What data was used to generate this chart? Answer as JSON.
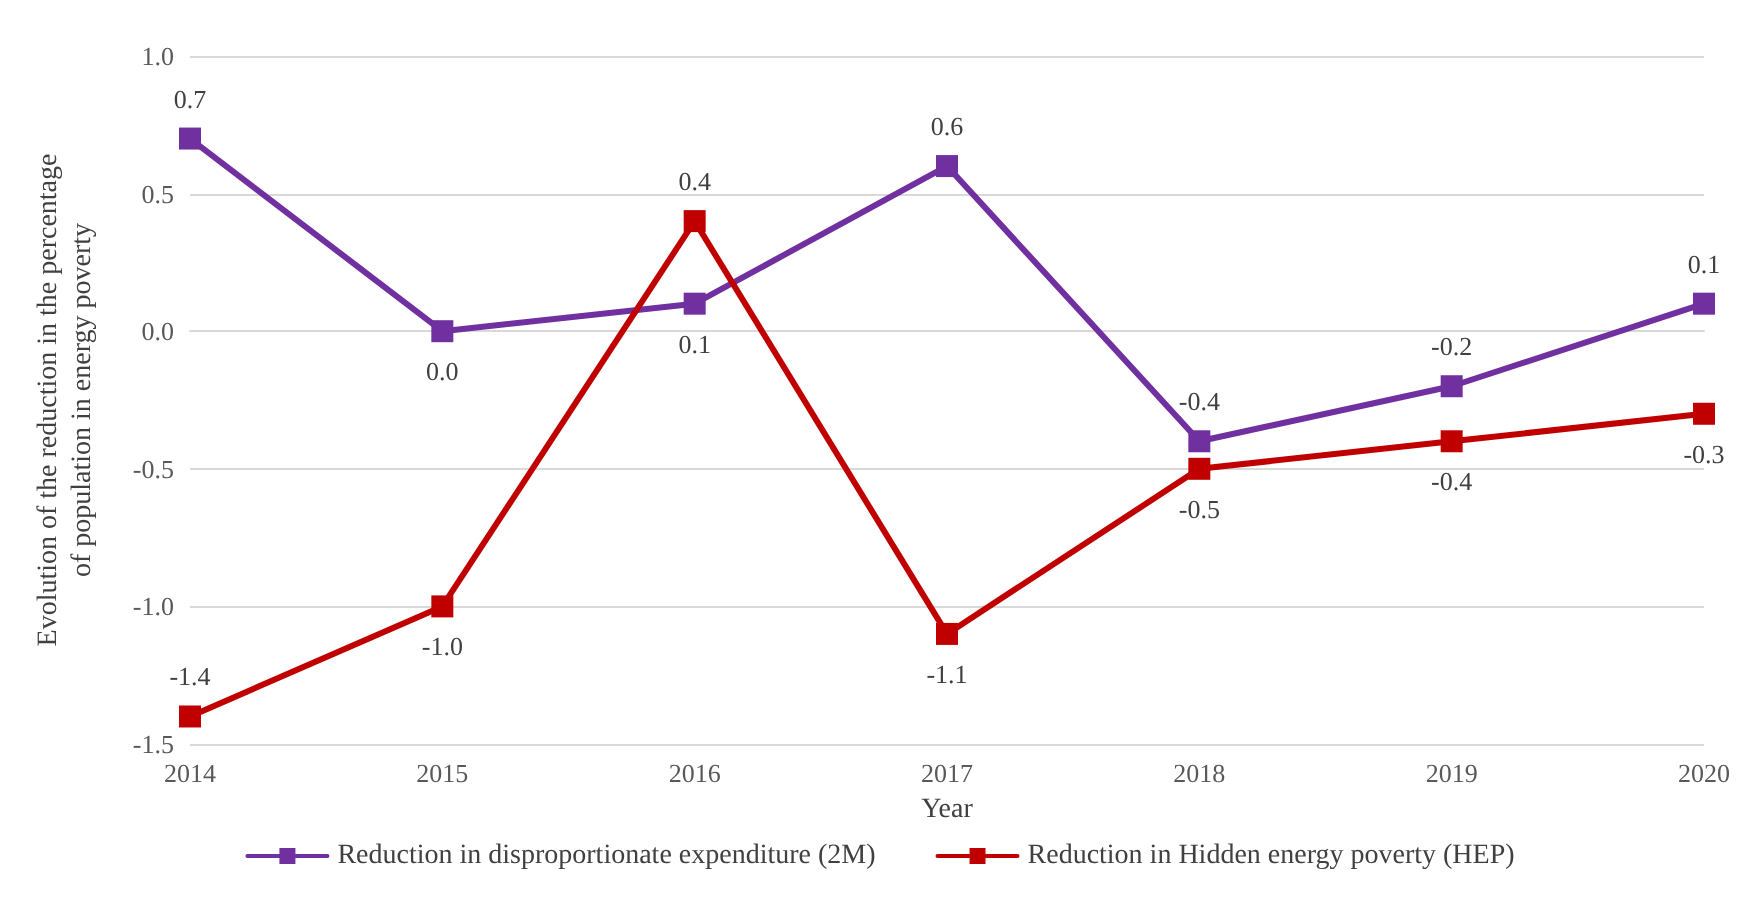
{
  "chart_data": {
    "type": "line",
    "xlabel": "Year",
    "ylabel": "Evolution of the reduction in the percentage\nof population in energy poverty",
    "categories": [
      "2014",
      "2015",
      "2016",
      "2017",
      "2018",
      "2019",
      "2020"
    ],
    "series": [
      {
        "name": "Reduction in disproportionate expenditure (2M)",
        "color": "#7030a0",
        "values": [
          0.7,
          0.0,
          0.1,
          0.6,
          -0.4,
          -0.2,
          0.1
        ],
        "value_labels": [
          "0.7",
          "0.0",
          "0.1",
          "0.6",
          "-0.4",
          "-0.2",
          "0.1"
        ]
      },
      {
        "name": "Reduction in Hidden energy poverty (HEP)",
        "color": "#c00000",
        "values": [
          -1.4,
          -1.0,
          0.4,
          -1.1,
          -0.5,
          -0.4,
          -0.3
        ],
        "value_labels": [
          "-1.4",
          "-1.0",
          "0.4",
          "-1.1",
          "-0.5",
          "-0.4",
          "-0.3"
        ]
      }
    ],
    "ylim": [
      -1.5,
      1.0
    ],
    "yticks": [
      {
        "value": -1.5,
        "label": "-1.5"
      },
      {
        "value": -1,
        "label": "-1.0"
      },
      {
        "value": -0.5,
        "label": "-0.5"
      },
      {
        "value": 0,
        "label": "0.0"
      },
      {
        "value": 0.5,
        "label": "0.5"
      },
      {
        "value": 1,
        "label": "1.0"
      }
    ],
    "grid": "y",
    "legend": "bottom",
    "marker": "square",
    "line_style": "solid"
  }
}
